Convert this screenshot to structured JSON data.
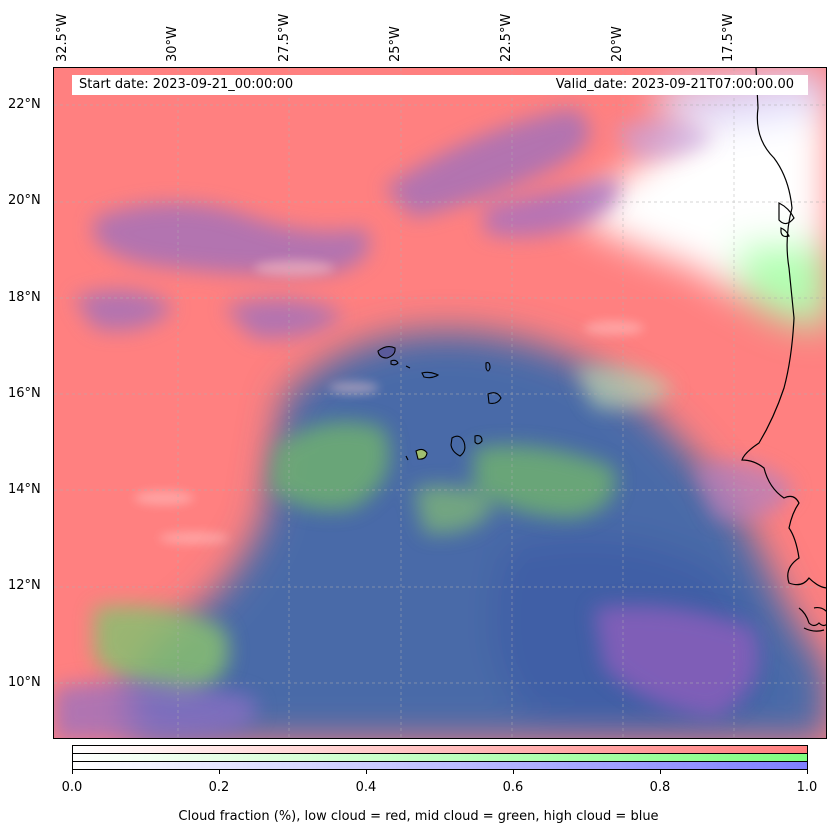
{
  "map": {
    "start_date": "Start date: 2023-09-21_00:00:00",
    "valid_date": "Valid_date: 2023-09-21T07:00:00.00",
    "lon_labels": [
      "32.5°W",
      "30°W",
      "27.5°W",
      "25°W",
      "22.5°W",
      "20°W",
      "17.5°W"
    ],
    "lat_labels": [
      "22°N",
      "20°N",
      "18°N",
      "16°N",
      "14°N",
      "12°N",
      "10°N"
    ],
    "layers": [
      "low cloud = red",
      "mid cloud = green",
      "high cloud = blue"
    ],
    "colors": {
      "low": "#ff7f7f",
      "mid": "#7fff7f",
      "high": "#7f7fff",
      "mixed": "#4a6aa8",
      "coast": "#000000"
    }
  },
  "colorbar": {
    "ticks": [
      "0.0",
      "0.2",
      "0.4",
      "0.6",
      "0.8",
      "1.0"
    ],
    "caption": "Cloud fraction (%), low cloud = red, mid cloud = green, high cloud = blue"
  }
}
